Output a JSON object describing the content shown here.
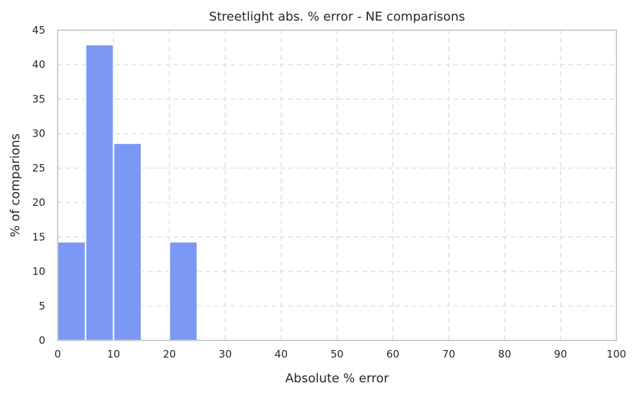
{
  "chart_data": {
    "type": "bar",
    "title": "Streetlight abs. % error - NE comparisons",
    "xlabel": "Absolute % error",
    "ylabel": "% of comparions",
    "xlim": [
      0,
      100
    ],
    "ylim": [
      0,
      45
    ],
    "x_ticks": [
      0,
      10,
      20,
      30,
      40,
      50,
      60,
      70,
      80,
      90,
      100
    ],
    "y_ticks": [
      0,
      5,
      10,
      15,
      20,
      25,
      30,
      35,
      40,
      45
    ],
    "grid": true,
    "bar_color": "#7b98f4",
    "bins": [
      {
        "start": 0,
        "end": 5,
        "value": 14.3
      },
      {
        "start": 5,
        "end": 10,
        "value": 42.9
      },
      {
        "start": 10,
        "end": 15,
        "value": 28.6
      },
      {
        "start": 15,
        "end": 20,
        "value": 0
      },
      {
        "start": 20,
        "end": 25,
        "value": 14.3
      }
    ]
  }
}
